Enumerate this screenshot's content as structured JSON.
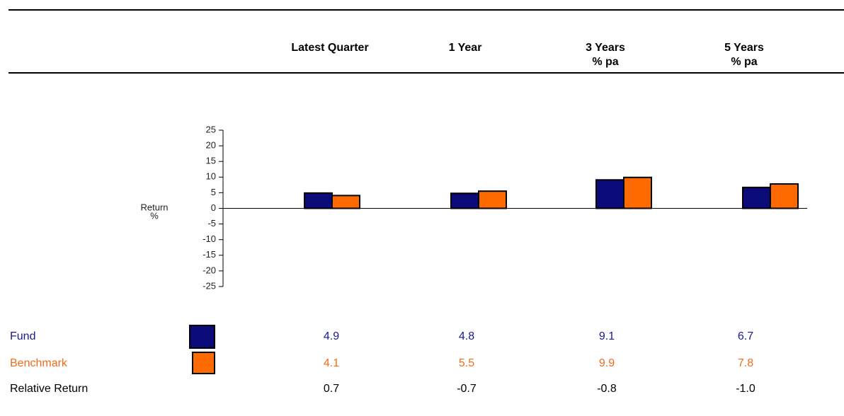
{
  "chart_data": {
    "type": "bar",
    "categories": [
      "Latest Quarter",
      "1 Year",
      "3 Years",
      "5 Years"
    ],
    "category_notes": [
      null,
      null,
      "% pa",
      "% pa"
    ],
    "ylabel": [
      "Return",
      "%"
    ],
    "ylim": [
      -25,
      25
    ],
    "yticks": [
      -25,
      -20,
      -15,
      -10,
      -5,
      0,
      5,
      10,
      15,
      20,
      25
    ],
    "series": [
      {
        "name": "Fund",
        "color": "#0a0a78",
        "text_color": "#1a1a8c",
        "values": [
          4.9,
          4.8,
          9.1,
          6.7
        ]
      },
      {
        "name": "Benchmark",
        "color": "#ff6a00",
        "text_color": "#f26b1d",
        "values": [
          4.1,
          5.5,
          9.9,
          7.8
        ]
      }
    ],
    "relative_return": {
      "name": "Relative Return",
      "values": [
        0.7,
        -0.7,
        -0.8,
        -1.0
      ],
      "value_labels": [
        "0.7",
        "-0.7",
        "-0.8",
        "-1.0"
      ]
    }
  }
}
